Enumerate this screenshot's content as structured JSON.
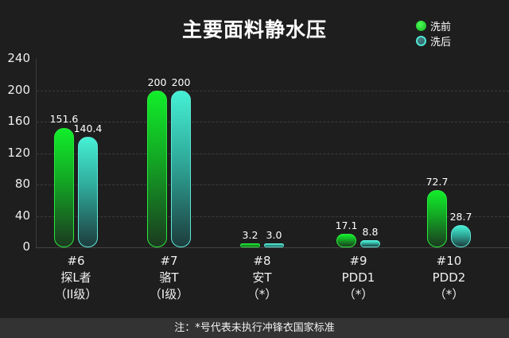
{
  "chart_data": {
    "type": "bar",
    "title": "主要面料静水压",
    "categories": [
      "#6 探L者 (II级)",
      "#7 骆T (I级)",
      "#8 安T (*)",
      "#9 PDD1 (*)",
      "#10 PDD2 (*)"
    ],
    "category_lines": [
      [
        "#6",
        "探L者",
        "（II级）"
      ],
      [
        "#7",
        "骆T",
        "（I级）"
      ],
      [
        "#8",
        "安T",
        "（*）"
      ],
      [
        "#9",
        "PDD1",
        "（*）"
      ],
      [
        "#10",
        "PDD2",
        "（*）"
      ]
    ],
    "series": [
      {
        "name": "洗前",
        "color": "#12ee2a",
        "values": [
          151.6,
          200,
          3.2,
          17.1,
          72.7
        ],
        "labels": [
          "151.6",
          "200",
          "3.2",
          "17.1",
          "72.7"
        ]
      },
      {
        "name": "洗后",
        "color": "#45f0d4",
        "values": [
          140.4,
          200,
          3.0,
          8.8,
          28.7
        ],
        "labels": [
          "140.4",
          "200",
          "3.0",
          "8.8",
          "28.7"
        ]
      }
    ],
    "xlabel": "",
    "ylabel": "",
    "ylim": [
      0,
      240
    ],
    "yticks": [
      "0",
      "40",
      "80",
      "120",
      "160",
      "200",
      "240"
    ],
    "grid": true,
    "legend_position": "top-right"
  },
  "legend": [
    {
      "label": "洗前",
      "color": "#12ee2a"
    },
    {
      "label": "洗后",
      "color": "#45f0d4"
    }
  ],
  "footer": {
    "note": "注：*号代表未执行冲锋衣国家标准"
  }
}
